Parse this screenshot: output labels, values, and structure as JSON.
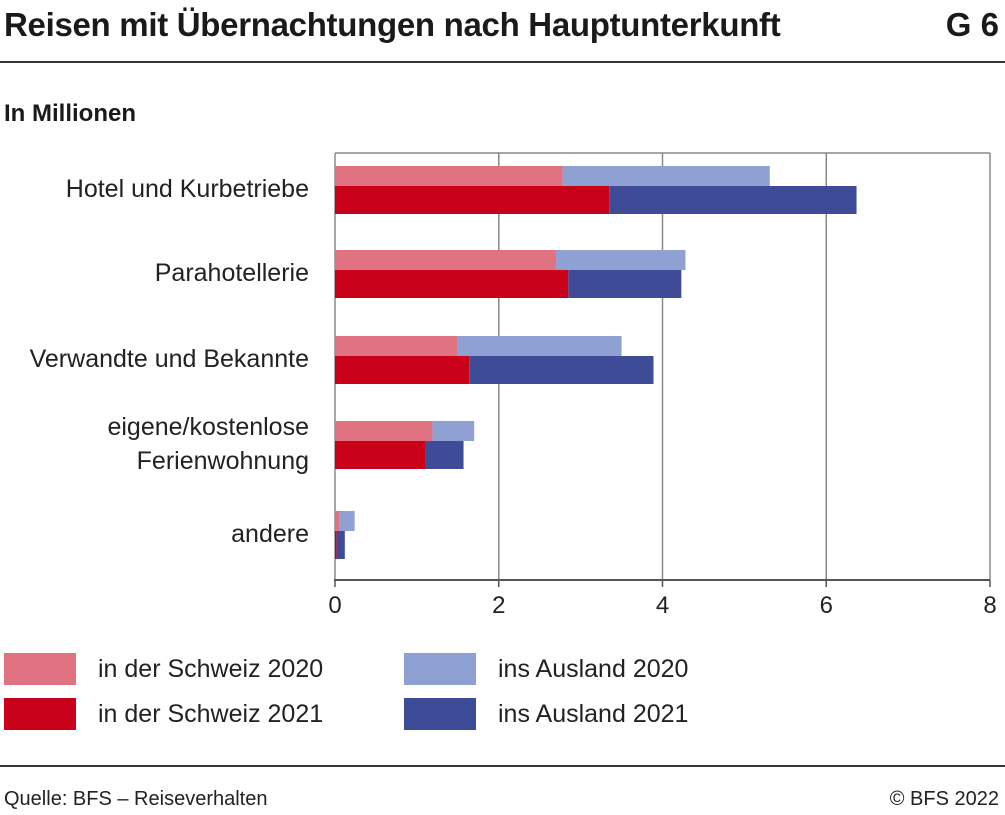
{
  "header": {
    "title": "Reisen mit Übernachtungen nach Hauptunterkunft",
    "figure_number": "G 6"
  },
  "chart_data": {
    "type": "bar",
    "orientation": "horizontal",
    "stacked": true,
    "subtitle": "In Millionen",
    "categories": [
      "Hotel und Kurbetriebe",
      "Parahotellerie",
      "Verwandte und Bekannte",
      "eigene/kostenlose Ferienwohnung",
      "andere"
    ],
    "category_label_lines": [
      [
        "Hotel und Kurbetriebe"
      ],
      [
        "Parahotellerie"
      ],
      [
        "Verwandte und Bekannte"
      ],
      [
        "eigene/kostenlose",
        "Ferienwohnung"
      ],
      [
        "andere"
      ]
    ],
    "groups": [
      {
        "year": "2020",
        "series": [
          {
            "name": "in der Schweiz 2020",
            "color": "#e07282",
            "values": [
              2.78,
              2.7,
              1.5,
              1.19,
              0.05
            ]
          },
          {
            "name": "ins Ausland 2020",
            "color": "#8fa0d2",
            "values": [
              2.53,
              1.58,
              2.0,
              0.51,
              0.19
            ]
          }
        ]
      },
      {
        "year": "2021",
        "series": [
          {
            "name": "in der Schweiz 2021",
            "color": "#c8001a",
            "values": [
              3.35,
              2.85,
              1.64,
              1.11,
              0.02
            ]
          },
          {
            "name": "ins Ausland 2021",
            "color": "#3e4c98",
            "values": [
              3.02,
              1.38,
              2.25,
              0.46,
              0.1
            ]
          }
        ]
      }
    ],
    "xlim": [
      0,
      8
    ],
    "xticks": [
      0,
      2,
      4,
      6,
      8
    ],
    "grid": true,
    "legend_position": "bottom"
  },
  "legend": [
    {
      "label": "in der Schweiz 2020",
      "color": "#e07282"
    },
    {
      "label": "ins Ausland 2020",
      "color": "#8fa0d2"
    },
    {
      "label": "in der Schweiz 2021",
      "color": "#c8001a"
    },
    {
      "label": "ins Ausland 2021",
      "color": "#3e4c98"
    }
  ],
  "footer": {
    "source": "Quelle: BFS – Reiseverhalten",
    "copyright": "© BFS 2022"
  }
}
